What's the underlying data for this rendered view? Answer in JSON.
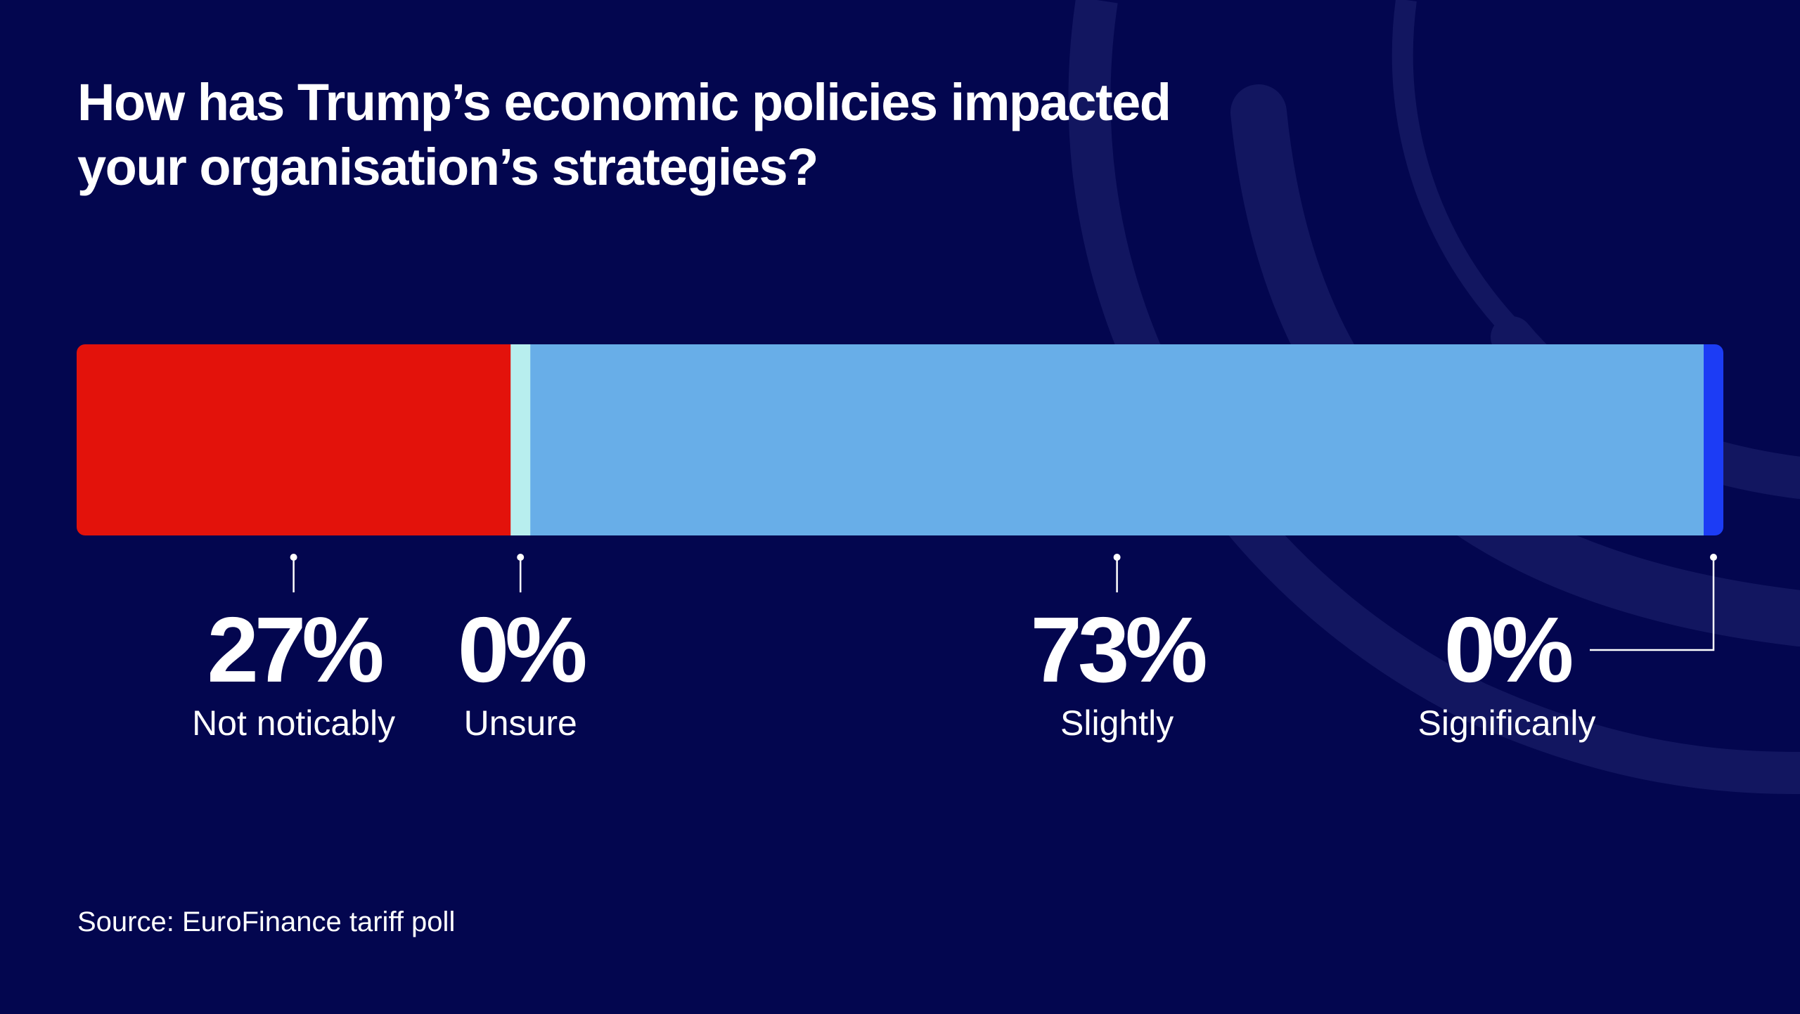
{
  "title_lines": [
    "How has Trump’s economic policies impacted",
    "your organisation’s strategies?"
  ],
  "source": "Source: EuroFinance tariff poll",
  "colors": {
    "background": "#03064f",
    "decor_arc": "#121660",
    "text": "#ffffff"
  },
  "chart_data": {
    "type": "bar",
    "orientation": "horizontal-stacked-100",
    "title": "How has Trump’s economic policies impacted your organisation’s strategies?",
    "categories": [
      "Not noticably",
      "Unsure",
      "Slightly",
      "Significanly"
    ],
    "values": [
      27,
      0,
      73,
      0
    ],
    "value_labels": [
      "27%",
      "0%",
      "73%",
      "0%"
    ],
    "colors": [
      "#e3120b",
      "#b8eeee",
      "#68aee8",
      "#1c3cf5"
    ],
    "xlim": [
      0,
      100
    ],
    "unit": "%",
    "grid": false,
    "legend": "none"
  }
}
